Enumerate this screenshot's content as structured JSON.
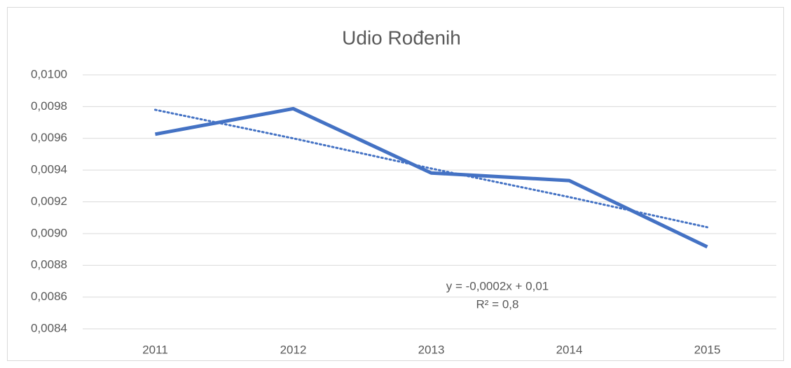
{
  "chart_data": {
    "type": "line",
    "title": "Udio Rođenih",
    "categories": [
      "2011",
      "2012",
      "2013",
      "2014",
      "2015"
    ],
    "series": [
      {
        "name": null,
        "color": "#4472c4",
        "values": [
          0.009626,
          0.009787,
          0.009382,
          0.009334,
          0.008916
        ]
      }
    ],
    "trendline": {
      "color": "#4472c4",
      "style": "dotted",
      "values": [
        0.00978,
        0.0096,
        0.00941,
        0.00923,
        0.00904
      ]
    },
    "annotations": [
      "y = -0,0002x + 0,01",
      "R² = 0,8"
    ],
    "ylim": [
      0.0084,
      0.01
    ],
    "yticks": [
      {
        "value": 0.0084,
        "label": "0,0084"
      },
      {
        "value": 0.0086,
        "label": "0,0086"
      },
      {
        "value": 0.0088,
        "label": "0,0088"
      },
      {
        "value": 0.009,
        "label": "0,0090"
      },
      {
        "value": 0.0092,
        "label": "0,0092"
      },
      {
        "value": 0.0094,
        "label": "0,0094"
      },
      {
        "value": 0.0096,
        "label": "0,0096"
      },
      {
        "value": 0.0098,
        "label": "0,0098"
      },
      {
        "value": 0.01,
        "label": "0,0100"
      }
    ],
    "grid": true
  }
}
